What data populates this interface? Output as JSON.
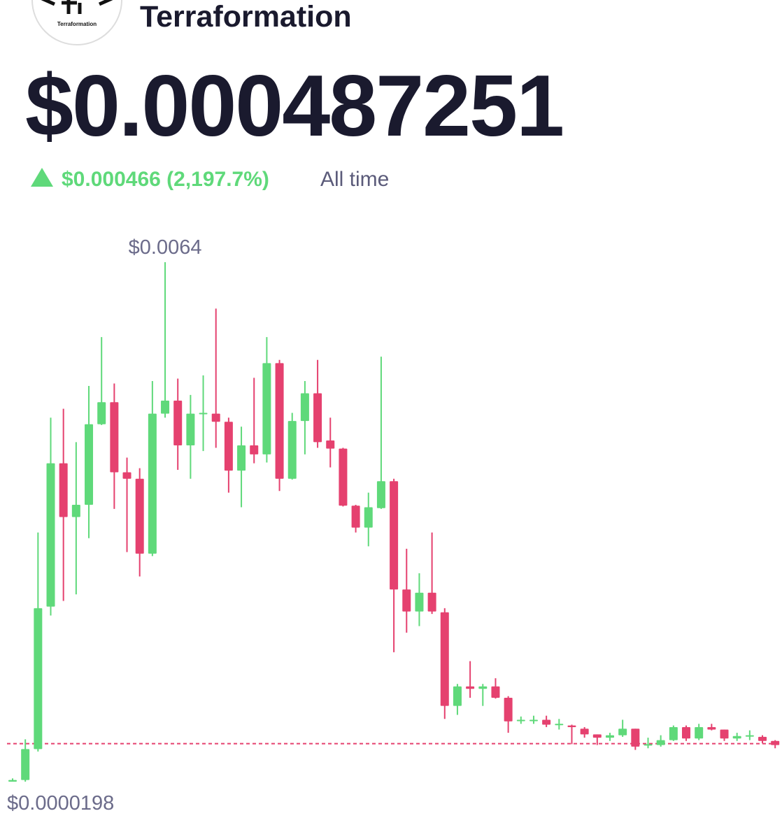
{
  "header": {
    "logo_text": "Terraformation",
    "name": "Terraformation",
    "price": "$0.000487251",
    "change": "$0.000466 (2,197.7%)",
    "period": "All time"
  },
  "chart_data": {
    "type": "candlestick",
    "up_color": "#5fd97a",
    "down_color": "#e5416f",
    "open": [
      2e-05,
      4e-05,
      0.00042,
      0.00217,
      0.00393,
      0.00327,
      0.00342,
      0.00441,
      0.00468,
      0.00382,
      0.00374,
      0.00282,
      0.00454,
      0.0047,
      0.00415,
      0.00454,
      0.00454,
      0.00444,
      0.00384,
      0.00415,
      0.00404,
      0.00516,
      0.00374,
      0.00445,
      0.00479,
      0.00421,
      0.00411,
      0.00341,
      0.00314,
      0.00338,
      0.00371,
      0.00238,
      0.00211,
      0.00234,
      0.0021,
      0.00095,
      0.00119,
      0.00116,
      0.00119,
      0.00105,
      0.00077,
      0.00077,
      0.00078,
      0.00072,
      0.00071,
      0.00067,
      0.0006,
      0.00056,
      0.00059,
      0.00067,
      0.00047,
      0.00047,
      0.00053,
      0.00069,
      0.00055,
      0.00069,
      0.00066,
      0.00055,
      0.00058,
      0.00057,
      0.00052
    ],
    "high": [
      6e-05,
      0.00054,
      0.00308,
      0.00449,
      0.0046,
      0.00419,
      0.00488,
      0.00548,
      0.00491,
      0.004,
      0.00387,
      0.00494,
      0.0064,
      0.00497,
      0.00477,
      0.00501,
      0.00583,
      0.00449,
      0.00438,
      0.00498,
      0.00548,
      0.0052,
      0.00455,
      0.00494,
      0.0052,
      0.00449,
      0.00412,
      0.00342,
      0.00357,
      0.00524,
      0.00374,
      0.00288,
      0.00258,
      0.00308,
      0.00215,
      0.00122,
      0.0015,
      0.00122,
      0.00129,
      0.00107,
      0.00082,
      0.00083,
      0.00083,
      0.00079,
      0.00072,
      0.00069,
      0.0006,
      0.00062,
      0.00078,
      0.00067,
      0.00056,
      0.00059,
      0.00071,
      0.00071,
      0.00073,
      0.00073,
      0.00066,
      0.00062,
      0.00065,
      0.00059,
      0.00053
    ],
    "low": [
      1.98e-05,
      2e-05,
      0.00039,
      0.00206,
      0.00224,
      0.00232,
      0.00301,
      0.0044,
      0.00337,
      0.00284,
      0.00254,
      0.00279,
      0.00449,
      0.00385,
      0.00374,
      0.00408,
      0.00412,
      0.00357,
      0.00339,
      0.00393,
      0.00394,
      0.00359,
      0.00373,
      0.00404,
      0.00412,
      0.00388,
      0.0034,
      0.00308,
      0.00291,
      0.00337,
      0.00161,
      0.00185,
      0.00193,
      0.00208,
      0.00079,
      0.00084,
      0.00105,
      0.00095,
      0.00104,
      0.00062,
      0.00073,
      0.00073,
      0.00069,
      0.00066,
      0.00048,
      0.00056,
      0.00047,
      0.00052,
      0.00057,
      0.00041,
      0.00043,
      0.00045,
      0.00052,
      0.00052,
      0.00053,
      0.00065,
      0.00052,
      0.00052,
      0.00053,
      0.00049,
      0.00043
    ],
    "close": [
      4e-05,
      0.00042,
      0.00215,
      0.00393,
      0.00327,
      0.00342,
      0.00441,
      0.00468,
      0.00382,
      0.00374,
      0.00282,
      0.00454,
      0.0047,
      0.00415,
      0.00454,
      0.00455,
      0.00444,
      0.00384,
      0.00415,
      0.00404,
      0.00516,
      0.00374,
      0.00445,
      0.00479,
      0.00419,
      0.00411,
      0.00341,
      0.00314,
      0.00339,
      0.00371,
      0.00238,
      0.00211,
      0.00234,
      0.00211,
      0.00095,
      0.00119,
      0.00116,
      0.00119,
      0.00105,
      0.00076,
      0.00078,
      0.00078,
      0.00072,
      0.00073,
      0.00069,
      0.0006,
      0.00056,
      0.00059,
      0.00067,
      0.00045,
      0.00048,
      0.00053,
      0.00069,
      0.00055,
      0.00069,
      0.00066,
      0.00055,
      0.00058,
      0.00059,
      0.00052,
      0.00047
    ],
    "max_label": {
      "value": 0.0064,
      "label": "$0.0064"
    },
    "min_label": {
      "value": 1.98e-05,
      "label": "$0.0000198"
    },
    "current_price": 0.000487251,
    "current_line_color": "#e5416f"
  }
}
